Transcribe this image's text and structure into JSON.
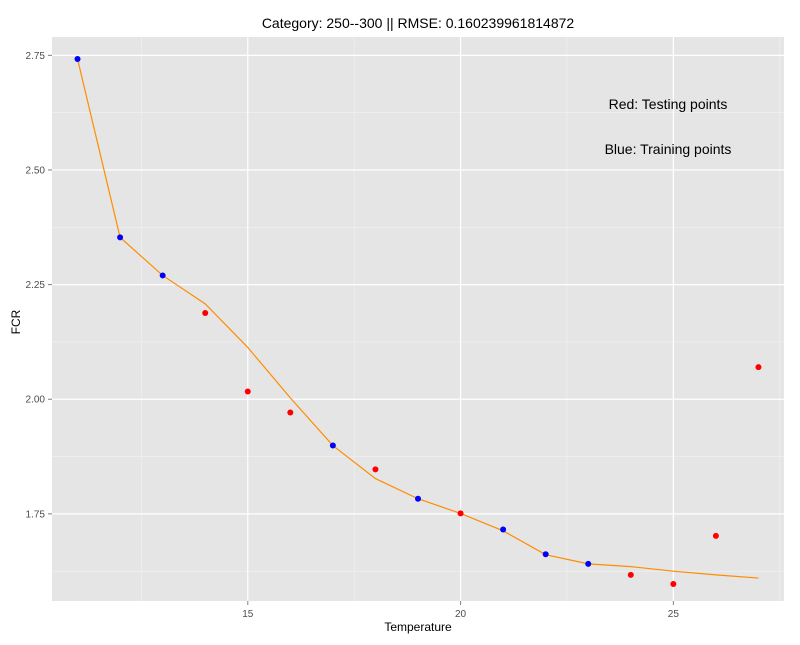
{
  "chart_data": {
    "type": "scatter",
    "title": "Category: 250--300 || RMSE: 0.160239961814872",
    "xlabel": "Temperature",
    "ylabel": "FCR",
    "xlim": [
      10.4,
      27.6
    ],
    "ylim": [
      1.56,
      2.79
    ],
    "x_ticks": [
      15,
      20,
      25
    ],
    "y_ticks": [
      1.75,
      2.0,
      2.25,
      2.5,
      2.75
    ],
    "x_tick_labels": [
      "15",
      "20",
      "25"
    ],
    "y_tick_labels": [
      "1.75",
      "2.00",
      "2.25",
      "2.50",
      "2.75"
    ],
    "grid": true,
    "annotations": [
      "Red: Testing points",
      "Blue: Training points"
    ],
    "colors": {
      "panel": "#e5e5e5",
      "grid_major": "#ffffff",
      "grid_minor": "#f2f2f2",
      "training": "#0000ff",
      "testing": "#ff0000",
      "line": "#ff8c00",
      "tick_text": "#4d4d4d"
    },
    "series": [
      {
        "kind": "line",
        "x": [
          11,
          12,
          13,
          14,
          15,
          16,
          17,
          18,
          19,
          20,
          21,
          22,
          23,
          24,
          25,
          26,
          27
        ],
        "y": [
          2.742,
          2.353,
          2.27,
          2.208,
          2.113,
          2.003,
          1.899,
          1.827,
          1.783,
          1.751,
          1.713,
          1.661,
          1.641,
          1.635,
          1.625,
          1.617,
          1.61
        ]
      },
      {
        "kind": "points",
        "x": [
          11,
          12,
          13,
          17,
          19,
          21,
          22,
          23
        ],
        "y": [
          2.742,
          2.353,
          2.27,
          1.899,
          1.783,
          1.716,
          1.662,
          1.641
        ]
      },
      {
        "kind": "points",
        "x": [
          14,
          15,
          16,
          18,
          20,
          24,
          25,
          26,
          27
        ],
        "y": [
          2.188,
          2.017,
          1.971,
          1.847,
          1.751,
          1.617,
          1.597,
          1.702,
          2.07
        ]
      }
    ]
  }
}
